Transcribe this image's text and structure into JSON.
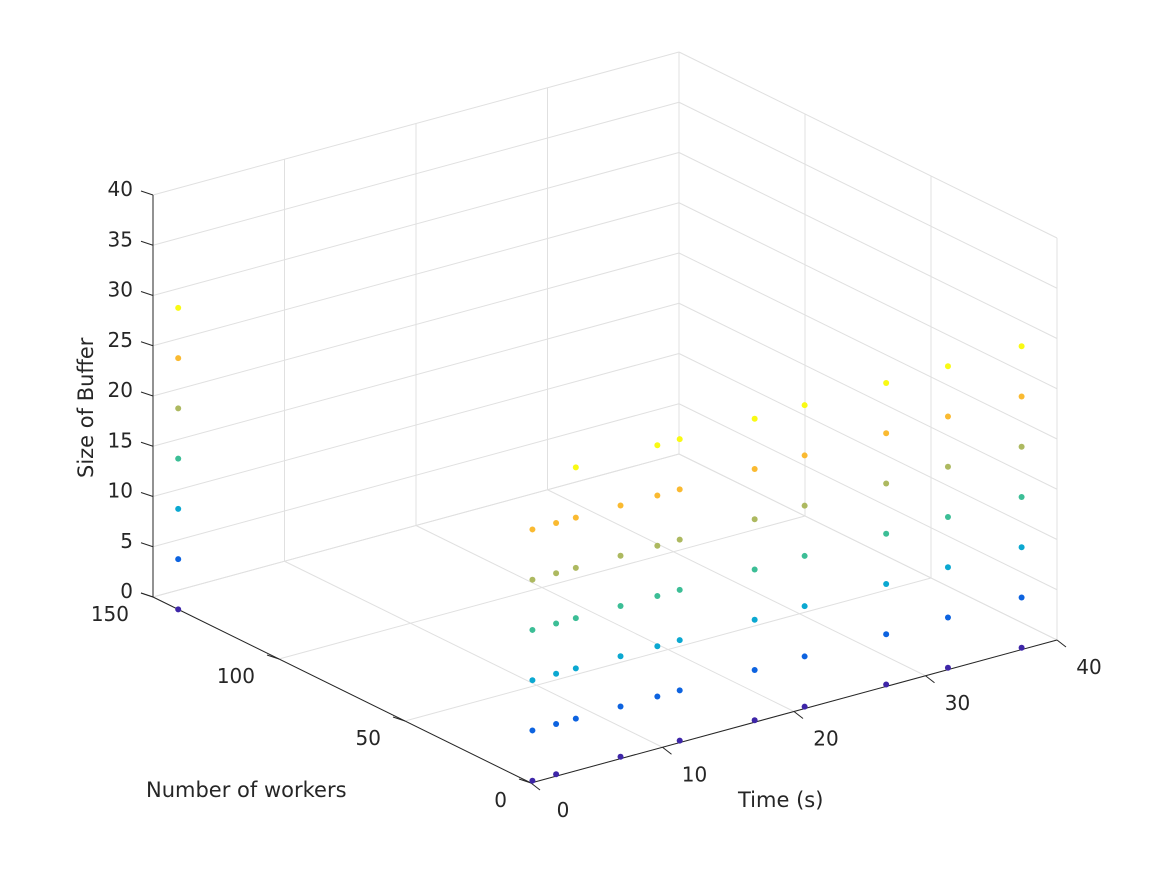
{
  "chart_data": {
    "type": "scatter3d",
    "title": "",
    "xlabel": "Time (s)",
    "ylabel": "Number of workers",
    "zlabel": "Size of Buffer",
    "xlim": [
      0,
      40
    ],
    "ylim": [
      0,
      150
    ],
    "zlim": [
      0,
      40
    ],
    "xticks": [
      0,
      10,
      20,
      30,
      40
    ],
    "yticks": [
      0,
      50,
      100,
      150
    ],
    "zticks": [
      0,
      5,
      10,
      15,
      20,
      25,
      30,
      35,
      40
    ],
    "grid": true,
    "colormap": "parula",
    "points": [
      {
        "t": 0.3,
        "w": 1,
        "b": 0
      },
      {
        "t": 0.3,
        "w": 1,
        "b": 5
      },
      {
        "t": 0.3,
        "w": 1,
        "b": 10
      },
      {
        "t": 0.3,
        "w": 1,
        "b": 15
      },
      {
        "t": 0.3,
        "w": 1,
        "b": 20
      },
      {
        "t": 0.3,
        "w": 1,
        "b": 25
      },
      {
        "t": 2.1,
        "w": 1,
        "b": 0
      },
      {
        "t": 2.1,
        "w": 1,
        "b": 5
      },
      {
        "t": 2.1,
        "w": 1,
        "b": 10
      },
      {
        "t": 2.1,
        "w": 1,
        "b": 15
      },
      {
        "t": 2.1,
        "w": 1,
        "b": 20
      },
      {
        "t": 2.1,
        "w": 1,
        "b": 25
      },
      {
        "t": 3.6,
        "w": 1,
        "b": 5
      },
      {
        "t": 3.6,
        "w": 1,
        "b": 10
      },
      {
        "t": 3.6,
        "w": 1,
        "b": 15
      },
      {
        "t": 3.6,
        "w": 1,
        "b": 20
      },
      {
        "t": 3.6,
        "w": 1,
        "b": 25
      },
      {
        "t": 3.6,
        "w": 1,
        "b": 30
      },
      {
        "t": 7.0,
        "w": 1,
        "b": 0
      },
      {
        "t": 7.0,
        "w": 1,
        "b": 5
      },
      {
        "t": 7.0,
        "w": 1,
        "b": 10
      },
      {
        "t": 7.0,
        "w": 1,
        "b": 15
      },
      {
        "t": 7.0,
        "w": 1,
        "b": 20
      },
      {
        "t": 7.0,
        "w": 1,
        "b": 25
      },
      {
        "t": 9.8,
        "w": 1,
        "b": 5
      },
      {
        "t": 9.8,
        "w": 1,
        "b": 10
      },
      {
        "t": 9.8,
        "w": 1,
        "b": 15
      },
      {
        "t": 9.8,
        "w": 1,
        "b": 20
      },
      {
        "t": 9.8,
        "w": 1,
        "b": 25
      },
      {
        "t": 9.8,
        "w": 1,
        "b": 30
      },
      {
        "t": 11.5,
        "w": 1,
        "b": 0
      },
      {
        "t": 11.5,
        "w": 1,
        "b": 5
      },
      {
        "t": 11.5,
        "w": 1,
        "b": 10
      },
      {
        "t": 11.5,
        "w": 1,
        "b": 15
      },
      {
        "t": 11.5,
        "w": 1,
        "b": 20
      },
      {
        "t": 11.5,
        "w": 1,
        "b": 25
      },
      {
        "t": 11.5,
        "w": 1,
        "b": 30
      },
      {
        "t": 17.2,
        "w": 1,
        "b": 0
      },
      {
        "t": 17.2,
        "w": 1,
        "b": 5
      },
      {
        "t": 17.2,
        "w": 1,
        "b": 10
      },
      {
        "t": 17.2,
        "w": 1,
        "b": 15
      },
      {
        "t": 17.2,
        "w": 1,
        "b": 20
      },
      {
        "t": 17.2,
        "w": 1,
        "b": 25
      },
      {
        "t": 17.2,
        "w": 1,
        "b": 30
      },
      {
        "t": 21.0,
        "w": 1,
        "b": 0
      },
      {
        "t": 21.0,
        "w": 1,
        "b": 5
      },
      {
        "t": 21.0,
        "w": 1,
        "b": 10
      },
      {
        "t": 21.0,
        "w": 1,
        "b": 15
      },
      {
        "t": 21.0,
        "w": 1,
        "b": 20
      },
      {
        "t": 21.0,
        "w": 1,
        "b": 25
      },
      {
        "t": 21.0,
        "w": 1,
        "b": 30
      },
      {
        "t": 27.2,
        "w": 1,
        "b": 0
      },
      {
        "t": 27.2,
        "w": 1,
        "b": 5
      },
      {
        "t": 27.2,
        "w": 1,
        "b": 10
      },
      {
        "t": 27.2,
        "w": 1,
        "b": 15
      },
      {
        "t": 27.2,
        "w": 1,
        "b": 20
      },
      {
        "t": 27.2,
        "w": 1,
        "b": 25
      },
      {
        "t": 27.2,
        "w": 1,
        "b": 30
      },
      {
        "t": 31.9,
        "w": 1,
        "b": 0
      },
      {
        "t": 31.9,
        "w": 1,
        "b": 5
      },
      {
        "t": 31.9,
        "w": 1,
        "b": 10
      },
      {
        "t": 31.9,
        "w": 1,
        "b": 15
      },
      {
        "t": 31.9,
        "w": 1,
        "b": 20
      },
      {
        "t": 31.9,
        "w": 1,
        "b": 25
      },
      {
        "t": 31.9,
        "w": 1,
        "b": 30
      },
      {
        "t": 37.5,
        "w": 1,
        "b": 0
      },
      {
        "t": 37.5,
        "w": 1,
        "b": 5
      },
      {
        "t": 37.5,
        "w": 1,
        "b": 10
      },
      {
        "t": 37.5,
        "w": 1,
        "b": 15
      },
      {
        "t": 37.5,
        "w": 1,
        "b": 20
      },
      {
        "t": 37.5,
        "w": 1,
        "b": 25
      },
      {
        "t": 37.5,
        "w": 1,
        "b": 30
      },
      {
        "t": 0,
        "w": 140,
        "b": 0
      },
      {
        "t": 0,
        "w": 140,
        "b": 5
      },
      {
        "t": 0,
        "w": 140,
        "b": 10
      },
      {
        "t": 0,
        "w": 140,
        "b": 15
      },
      {
        "t": 0,
        "w": 140,
        "b": 20
      },
      {
        "t": 0,
        "w": 140,
        "b": 25
      },
      {
        "t": 0,
        "w": 140,
        "b": 30
      }
    ]
  }
}
